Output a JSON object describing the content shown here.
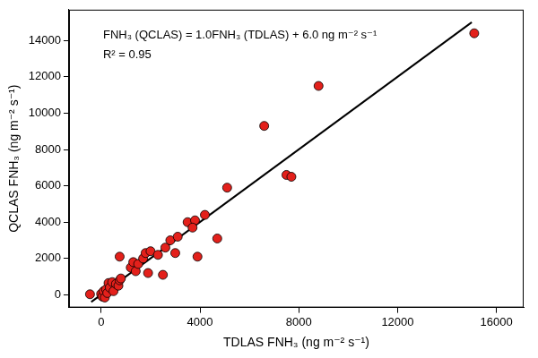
{
  "chart_data": {
    "type": "scatter",
    "x_label": "TDLAS FNH₃ (ng m⁻² s⁻¹)",
    "y_label": "QCLAS FNH₃ (ng m⁻² s⁻¹)",
    "annotations": [
      "FNH₃ (QCLAS) = 1.0FNH₃ (TDLAS) + 6.0 ng m⁻² s⁻¹",
      "R² = 0.95"
    ],
    "xlim": [
      -1300,
      17100
    ],
    "xticks": [
      0,
      4000,
      8000,
      12000,
      16000
    ],
    "ylim": [
      -700,
      15700
    ],
    "yticks": [
      0,
      2000,
      4000,
      6000,
      8000,
      10000,
      12000,
      14000
    ],
    "grid": false,
    "series": [
      {
        "type": "scatter",
        "color": "#e3201b",
        "marker": "circle",
        "x": [
          -450,
          0,
          50,
          100,
          150,
          200,
          250,
          300,
          350,
          450,
          500,
          600,
          700,
          750,
          800,
          750,
          1200,
          1300,
          1400,
          1500,
          1700,
          1800,
          1900,
          2000,
          2300,
          2500,
          2600,
          2800,
          3000,
          3100,
          3500,
          3800,
          3700,
          3900,
          4200,
          4700,
          5100,
          6600,
          7500,
          7700,
          8800,
          15100
        ],
        "values": [
          30,
          50,
          -100,
          200,
          -150,
          300,
          100,
          650,
          400,
          700,
          200,
          600,
          500,
          800,
          900,
          2100,
          1500,
          1800,
          1300,
          1700,
          2000,
          2300,
          1200,
          2400,
          2200,
          1100,
          2600,
          3000,
          2300,
          3200,
          4000,
          4100,
          3700,
          2100,
          4400,
          3100,
          5900,
          9300,
          6600,
          6500,
          11500,
          14400
        ]
      },
      {
        "type": "line",
        "color": "#000000",
        "line_style": "solid",
        "x": [
          -400,
          15000
        ],
        "values": [
          -394,
          15006
        ]
      }
    ]
  }
}
